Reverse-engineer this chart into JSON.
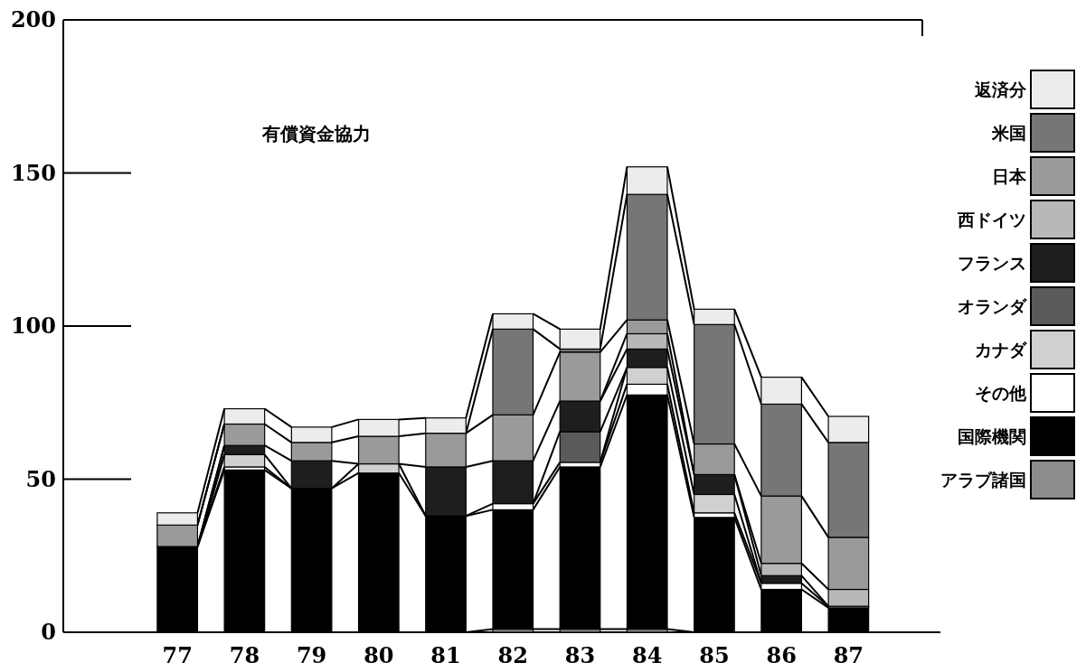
{
  "chart_data": {
    "type": "bar",
    "stacked": true,
    "title": "有償資金協力",
    "categories": [
      "77",
      "78",
      "79",
      "80",
      "81",
      "82",
      "83",
      "84",
      "85",
      "86",
      "87"
    ],
    "ylim": [
      0,
      200
    ],
    "yticks": [
      0,
      50,
      100,
      150,
      200
    ],
    "legend": "right",
    "grid": false,
    "series": [
      {
        "name": "アラブ諸国",
        "color": "#8c8c8c",
        "values": [
          0,
          0,
          0,
          0,
          0,
          1,
          1,
          1,
          0,
          0,
          0
        ]
      },
      {
        "name": "国際機関",
        "color": "#000000",
        "values": [
          28,
          53,
          47,
          52,
          38,
          39,
          53,
          76.5,
          37.5,
          14,
          8
        ]
      },
      {
        "name": "その他",
        "color": "#ffffff",
        "values": [
          0,
          1,
          0,
          0,
          0,
          2,
          1.5,
          3.5,
          1.5,
          2,
          0.5
        ]
      },
      {
        "name": "カナダ",
        "color": "#d0d0d0",
        "values": [
          0,
          4,
          0,
          3,
          0,
          0,
          0,
          5.5,
          6,
          0,
          0
        ]
      },
      {
        "name": "オランダ",
        "color": "#5a5a5a",
        "values": [
          0,
          0,
          0,
          0,
          0,
          0,
          10,
          0,
          0,
          0,
          0
        ]
      },
      {
        "name": "フランス",
        "color": "#1e1e1e",
        "values": [
          0,
          3,
          9,
          0,
          16,
          14,
          10,
          6,
          6.5,
          2.5,
          0
        ]
      },
      {
        "name": "西ドイツ",
        "color": "#b8b8b8",
        "values": [
          0,
          0,
          0,
          0,
          0,
          0,
          0,
          5,
          0,
          4,
          5.5
        ]
      },
      {
        "name": "日本",
        "color": "#9a9a9a",
        "values": [
          7,
          7,
          6,
          9,
          11,
          15,
          16,
          4.5,
          10,
          22,
          17
        ]
      },
      {
        "name": "米国",
        "color": "#767676",
        "values": [
          0,
          0,
          0,
          0,
          0,
          28,
          1,
          41,
          39,
          30,
          31
        ]
      },
      {
        "name": "返済分",
        "color": "#ececec",
        "values": [
          4,
          5,
          5,
          5.5,
          5,
          5,
          6.5,
          9,
          5,
          8.8,
          8.5
        ]
      }
    ]
  }
}
